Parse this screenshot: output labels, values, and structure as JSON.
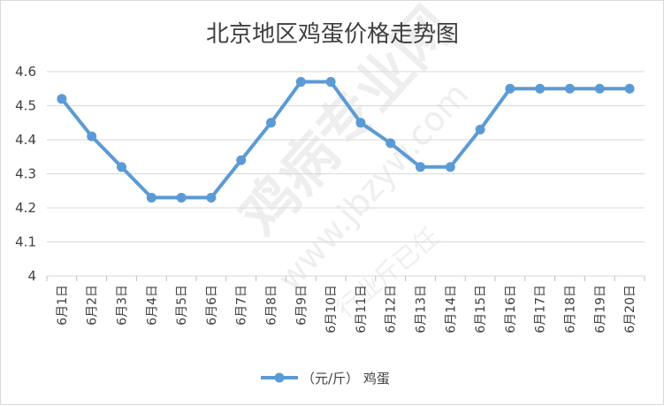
{
  "chart_data": {
    "type": "line",
    "title": "北京地区鸡蛋价格走势图",
    "categories": [
      "6月1日",
      "6月2日",
      "6月3日",
      "6月4日",
      "6月5日",
      "6月6日",
      "6月7日",
      "6月8日",
      "6月9日",
      "6月10日",
      "6月11日",
      "6月12日",
      "6月13日",
      "6月14日",
      "6月15日",
      "6月16日",
      "6月17日",
      "6月18日",
      "6月19日",
      "6月20日"
    ],
    "series": [
      {
        "name": "（元/斤） 鸡蛋",
        "values": [
          4.52,
          4.41,
          4.32,
          4.23,
          4.23,
          4.23,
          4.34,
          4.45,
          4.57,
          4.57,
          4.45,
          4.39,
          4.32,
          4.32,
          4.43,
          4.55,
          4.55,
          4.55,
          4.55,
          4.55
        ],
        "color": "#5b9bd5"
      }
    ],
    "ylim": [
      4,
      4.6
    ],
    "yticks": [
      "4",
      "4.1",
      "4.2",
      "4.3",
      "4.4",
      "4.5",
      "4.6"
    ],
    "grid": true,
    "legend": "bottom",
    "xlabel": "",
    "ylabel": ""
  },
  "watermark": {
    "main": "鸡病专业网",
    "url": "www.jbzyw.com",
    "sub": "行业斤已任"
  }
}
